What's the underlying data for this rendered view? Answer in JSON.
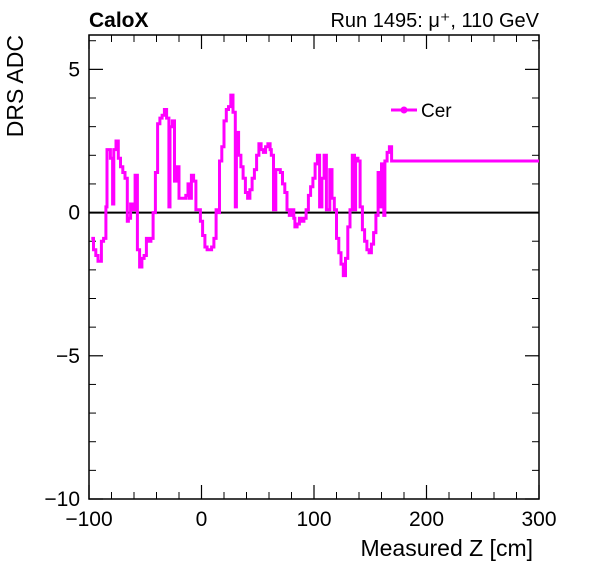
{
  "header": {
    "experiment": "CaloX",
    "run_info": "Run 1495:   μ⁺, 110 GeV"
  },
  "chart_data": {
    "type": "line",
    "xlabel": "Measured Z [cm]",
    "ylabel": "DRS ADC",
    "xlim": [
      -100,
      300
    ],
    "ylim": [
      -10,
      6.2
    ],
    "x_ticks": [
      -100,
      0,
      100,
      200,
      300
    ],
    "x_tick_labels": [
      "−100",
      "0",
      "100",
      "200",
      "300"
    ],
    "y_ticks": [
      -10,
      -5,
      0,
      5
    ],
    "y_tick_labels": [
      "−10",
      "−5",
      "0",
      "5"
    ],
    "grid": false,
    "legend_position": "top-right",
    "series": [
      {
        "name": "Cer",
        "color": "#ff00ff",
        "step": true,
        "points": [
          [
            -98,
            -0.9
          ],
          [
            -96,
            -1.3
          ],
          [
            -94,
            -1.5
          ],
          [
            -92,
            -1.7
          ],
          [
            -89,
            -1.0
          ],
          [
            -87,
            -0.9
          ],
          [
            -85,
            0.2
          ],
          [
            -84,
            2.2
          ],
          [
            -81,
            1.9
          ],
          [
            -79,
            0.3
          ],
          [
            -78,
            2.2
          ],
          [
            -76,
            2.5
          ],
          [
            -74,
            1.9
          ],
          [
            -72,
            1.6
          ],
          [
            -70,
            1.4
          ],
          [
            -68,
            1.2
          ],
          [
            -66,
            -0.3
          ],
          [
            -65,
            -0.2
          ],
          [
            -63,
            0.3
          ],
          [
            -61,
            0.1
          ],
          [
            -59,
            1.3
          ],
          [
            -57,
            -1.3
          ],
          [
            -55,
            -1.9
          ],
          [
            -53,
            -1.6
          ],
          [
            -51,
            -1.5
          ],
          [
            -49,
            -0.9
          ],
          [
            -47,
            -1.0
          ],
          [
            -45,
            -0.9
          ],
          [
            -43,
            0.0
          ],
          [
            -41,
            1.4
          ],
          [
            -39,
            3.1
          ],
          [
            -37,
            3.3
          ],
          [
            -35,
            3.4
          ],
          [
            -33,
            3.6
          ],
          [
            -31,
            3.3
          ],
          [
            -29,
            0.2
          ],
          [
            -28,
            3.0
          ],
          [
            -26,
            3.2
          ],
          [
            -24,
            1.1
          ],
          [
            -22,
            1.6
          ],
          [
            -20,
            0.5
          ],
          [
            -18,
            0.5
          ],
          [
            -16,
            0.5
          ],
          [
            -14,
            0.6
          ],
          [
            -12,
            1.0
          ],
          [
            -11,
            0.5
          ],
          [
            -9,
            1.3
          ],
          [
            -7,
            1.1
          ],
          [
            -5,
            0.1
          ],
          [
            -3,
            0.1
          ],
          [
            -1,
            -0.3
          ],
          [
            1,
            -0.8
          ],
          [
            3,
            -1.2
          ],
          [
            5,
            -1.3
          ],
          [
            7,
            -1.3
          ],
          [
            9,
            -1.2
          ],
          [
            11,
            -0.9
          ],
          [
            13,
            0.1
          ],
          [
            14,
            0.0
          ],
          [
            16,
            1.8
          ],
          [
            18,
            2.3
          ],
          [
            20,
            3.2
          ],
          [
            22,
            3.6
          ],
          [
            24,
            3.7
          ],
          [
            26,
            4.1
          ],
          [
            28,
            3.5
          ],
          [
            30,
            0.2
          ],
          [
            31,
            2.8
          ],
          [
            33,
            2.0
          ],
          [
            35,
            1.6
          ],
          [
            37,
            1.2
          ],
          [
            39,
            0.7
          ],
          [
            41,
            0.5
          ],
          [
            43,
            0.8
          ],
          [
            45,
            1.2
          ],
          [
            47,
            1.5
          ],
          [
            49,
            2.0
          ],
          [
            51,
            2.4
          ],
          [
            53,
            2.2
          ],
          [
            55,
            2.1
          ],
          [
            57,
            2.3
          ],
          [
            59,
            2.4
          ],
          [
            61,
            2.2
          ],
          [
            62,
            2.0
          ],
          [
            64,
            0.1
          ],
          [
            66,
            1.5
          ],
          [
            68,
            1.5
          ],
          [
            70,
            1.4
          ],
          [
            72,
            1.0
          ],
          [
            74,
            0.7
          ],
          [
            76,
            0.1
          ],
          [
            78,
            -0.1
          ],
          [
            80,
            0.1
          ],
          [
            82,
            -0.2
          ],
          [
            83,
            -0.5
          ],
          [
            85,
            -0.4
          ],
          [
            87,
            -0.2
          ],
          [
            89,
            -0.3
          ],
          [
            91,
            -0.2
          ],
          [
            93,
            0.1
          ],
          [
            95,
            0.6
          ],
          [
            97,
            0.9
          ],
          [
            99,
            1.2
          ],
          [
            101,
            1.7
          ],
          [
            103,
            2.0
          ],
          [
            105,
            0.2
          ],
          [
            107,
            1.2
          ],
          [
            109,
            2.0
          ],
          [
            111,
            0.1
          ],
          [
            114,
            1.5
          ],
          [
            116,
            0.5
          ],
          [
            118,
            0.1
          ],
          [
            120,
            -0.9
          ],
          [
            122,
            -1.4
          ],
          [
            124,
            -1.8
          ],
          [
            126,
            -2.2
          ],
          [
            128,
            -1.6
          ],
          [
            130,
            -0.5
          ],
          [
            132,
            0.1
          ],
          [
            134,
            2.0
          ],
          [
            136,
            0.1
          ],
          [
            137,
            1.9
          ],
          [
            139,
            1.8
          ],
          [
            141,
            0.2
          ],
          [
            143,
            -0.6
          ],
          [
            145,
            -1.0
          ],
          [
            147,
            -1.3
          ],
          [
            149,
            -1.4
          ],
          [
            151,
            -1.1
          ],
          [
            153,
            -0.7
          ],
          [
            155,
            -0.1
          ],
          [
            157,
            1.4
          ],
          [
            159,
            0.2
          ],
          [
            160,
            1.7
          ],
          [
            162,
            -0.1
          ],
          [
            163,
            1.8
          ],
          [
            165,
            2.1
          ],
          [
            167,
            2.3
          ],
          [
            169,
            1.8
          ]
        ]
      }
    ]
  }
}
